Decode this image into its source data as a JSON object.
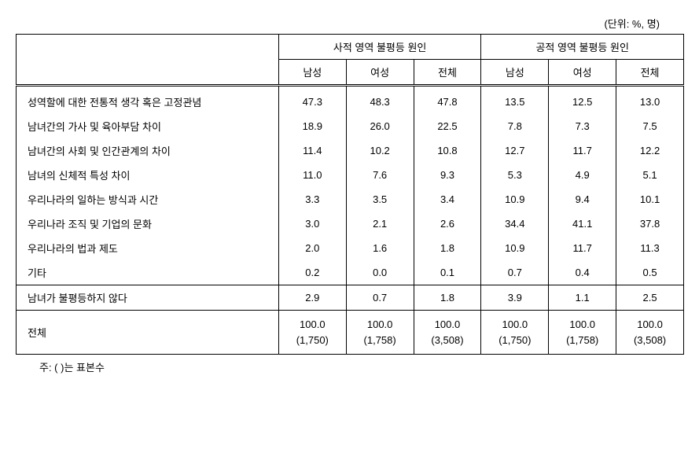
{
  "unit_label": "(단위: %, 명)",
  "headers": {
    "group1": "사적 영역 불평등 원인",
    "group2": "공적 영역 불평등 원인",
    "sub": [
      "남성",
      "여성",
      "전체",
      "남성",
      "여성",
      "전체"
    ]
  },
  "rows": [
    {
      "label": "성역할에 대한 전통적 생각 혹은 고정관념",
      "v": [
        "47.3",
        "48.3",
        "47.8",
        "13.5",
        "12.5",
        "13.0"
      ]
    },
    {
      "label": "남녀간의 가사 및 육아부담 차이",
      "v": [
        "18.9",
        "26.0",
        "22.5",
        "7.8",
        "7.3",
        "7.5"
      ]
    },
    {
      "label": "남녀간의 사회 및 인간관계의 차이",
      "v": [
        "11.4",
        "10.2",
        "10.8",
        "12.7",
        "11.7",
        "12.2"
      ]
    },
    {
      "label": "남녀의 신체적 특성 차이",
      "v": [
        "11.0",
        "7.6",
        "9.3",
        "5.3",
        "4.9",
        "5.1"
      ]
    },
    {
      "label": "우리나라의 일하는 방식과 시간",
      "v": [
        "3.3",
        "3.5",
        "3.4",
        "10.9",
        "9.4",
        "10.1"
      ]
    },
    {
      "label": "우리나라 조직 및 기업의 문화",
      "v": [
        "3.0",
        "2.1",
        "2.6",
        "34.4",
        "41.1",
        "37.8"
      ]
    },
    {
      "label": "우리나라의 법과 제도",
      "v": [
        "2.0",
        "1.6",
        "1.8",
        "10.9",
        "11.7",
        "11.3"
      ]
    },
    {
      "label": "기타",
      "v": [
        "0.2",
        "0.0",
        "0.1",
        "0.7",
        "0.4",
        "0.5"
      ]
    }
  ],
  "no_inequality_row": {
    "label": "남녀가 불평등하지 않다",
    "v": [
      "2.9",
      "0.7",
      "1.8",
      "3.9",
      "1.1",
      "2.5"
    ]
  },
  "total_row": {
    "label": "전체",
    "pct": [
      "100.0",
      "100.0",
      "100.0",
      "100.0",
      "100.0",
      "100.0"
    ],
    "n": [
      "(1,750)",
      "(1,758)",
      "(3,508)",
      "(1,750)",
      "(1,758)",
      "(3,508)"
    ]
  },
  "footnote": "주: (   )는 표본수"
}
